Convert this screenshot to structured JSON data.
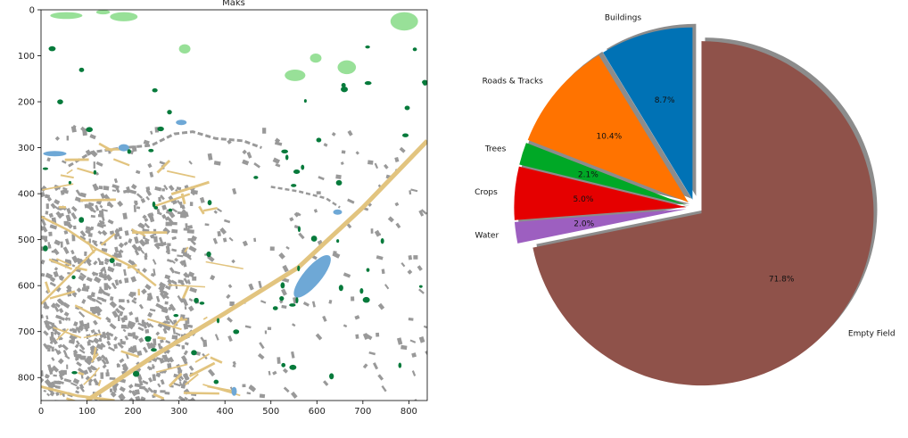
{
  "chart_data": [
    {
      "type": "heatmap",
      "title": "Maks",
      "xlabel": "",
      "ylabel": "",
      "xlim": [
        0,
        840
      ],
      "ylim": [
        850,
        0
      ],
      "xticks": [
        0,
        100,
        200,
        300,
        400,
        500,
        600,
        700,
        800
      ],
      "yticks": [
        0,
        100,
        200,
        300,
        400,
        500,
        600,
        700,
        800
      ],
      "classes": [
        {
          "name": "Buildings",
          "color": "#999999"
        },
        {
          "name": "Roads & Tracks",
          "color": "#e2c47f"
        },
        {
          "name": "Trees",
          "color": "#067a3b"
        },
        {
          "name": "Crops",
          "color": "#98e098"
        },
        {
          "name": "Water",
          "color": "#6ea8d6"
        },
        {
          "name": "Empty Field",
          "color": "#ffffff"
        }
      ],
      "grid": false
    },
    {
      "type": "pie",
      "labels": [
        "Buildings",
        "Roads & Tracks",
        "Trees",
        "Crops",
        "Water",
        "Empty Field"
      ],
      "values": [
        8.7,
        10.4,
        2.1,
        5.0,
        2.0,
        71.8
      ],
      "value_labels": [
        "8.7%",
        "10.4%",
        "2.1%",
        "5.0%",
        "2.0%",
        "71.8%"
      ],
      "colors": [
        "#0072b5",
        "#ff7300",
        "#00a826",
        "#e50000",
        "#9d5fc0",
        "#8f524a"
      ],
      "explode": [
        0.05,
        0.05,
        0.05,
        0.05,
        0.05,
        0.05
      ],
      "shadow": true,
      "start_angle_deg": 90,
      "direction": "counterclockwise"
    }
  ]
}
